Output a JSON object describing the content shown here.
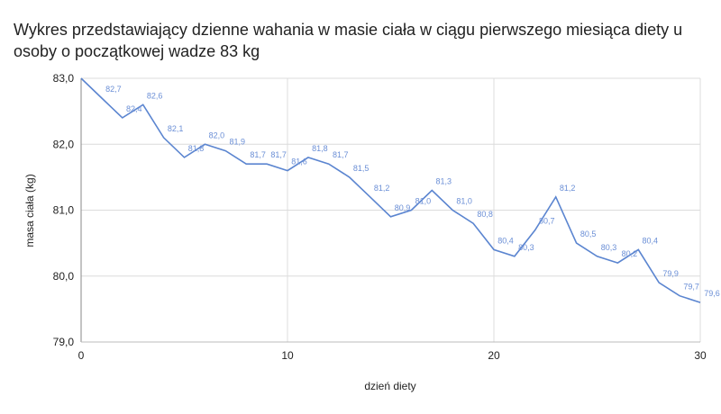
{
  "chart_data": {
    "type": "line",
    "title": "Wykres przedstawiający dzienne wahania w masie ciała w ciągu pierwszego miesiąca diety u osoby o początkowej wadze 83 kg",
    "xlabel": "dzień diety",
    "ylabel": "masa ciała (kg)",
    "xlim": [
      0,
      30
    ],
    "ylim": [
      79.0,
      83.0
    ],
    "x_ticks": [
      "0",
      "10",
      "20",
      "30"
    ],
    "y_ticks": [
      "79,0",
      "80,0",
      "81,0",
      "82,0",
      "83,0"
    ],
    "grid": true,
    "legend": null,
    "line_color": "#5b85d0",
    "label_color": "#6b8fd6",
    "series": [
      {
        "name": "masa ciała (kg)",
        "x": [
          0,
          1,
          2,
          3,
          4,
          5,
          6,
          7,
          8,
          9,
          10,
          11,
          12,
          13,
          14,
          15,
          16,
          17,
          18,
          19,
          20,
          21,
          22,
          23,
          24,
          25,
          26,
          27,
          28,
          29,
          30
        ],
        "values": [
          83.0,
          82.7,
          82.4,
          82.6,
          82.1,
          81.8,
          82.0,
          81.9,
          81.7,
          81.7,
          81.6,
          81.8,
          81.7,
          81.5,
          81.2,
          80.9,
          81.0,
          81.3,
          81.0,
          80.8,
          80.4,
          80.3,
          80.7,
          81.2,
          80.5,
          80.3,
          80.2,
          80.4,
          79.9,
          79.7,
          79.6
        ],
        "data_labels": [
          "",
          "82,7",
          "82,4",
          "82,6",
          "82,1",
          "81,8",
          "82,0",
          "81,9",
          "81,7",
          "81,7",
          "81,6",
          "81,8",
          "81,7",
          "81,5",
          "81,2",
          "80,9",
          "81,0",
          "81,3",
          "81,0",
          "80,8",
          "80,4",
          "80,3",
          "80,7",
          "81,2",
          "80,5",
          "80,3",
          "80,2",
          "80,4",
          "79,9",
          "79,7",
          "79,6"
        ]
      }
    ]
  }
}
